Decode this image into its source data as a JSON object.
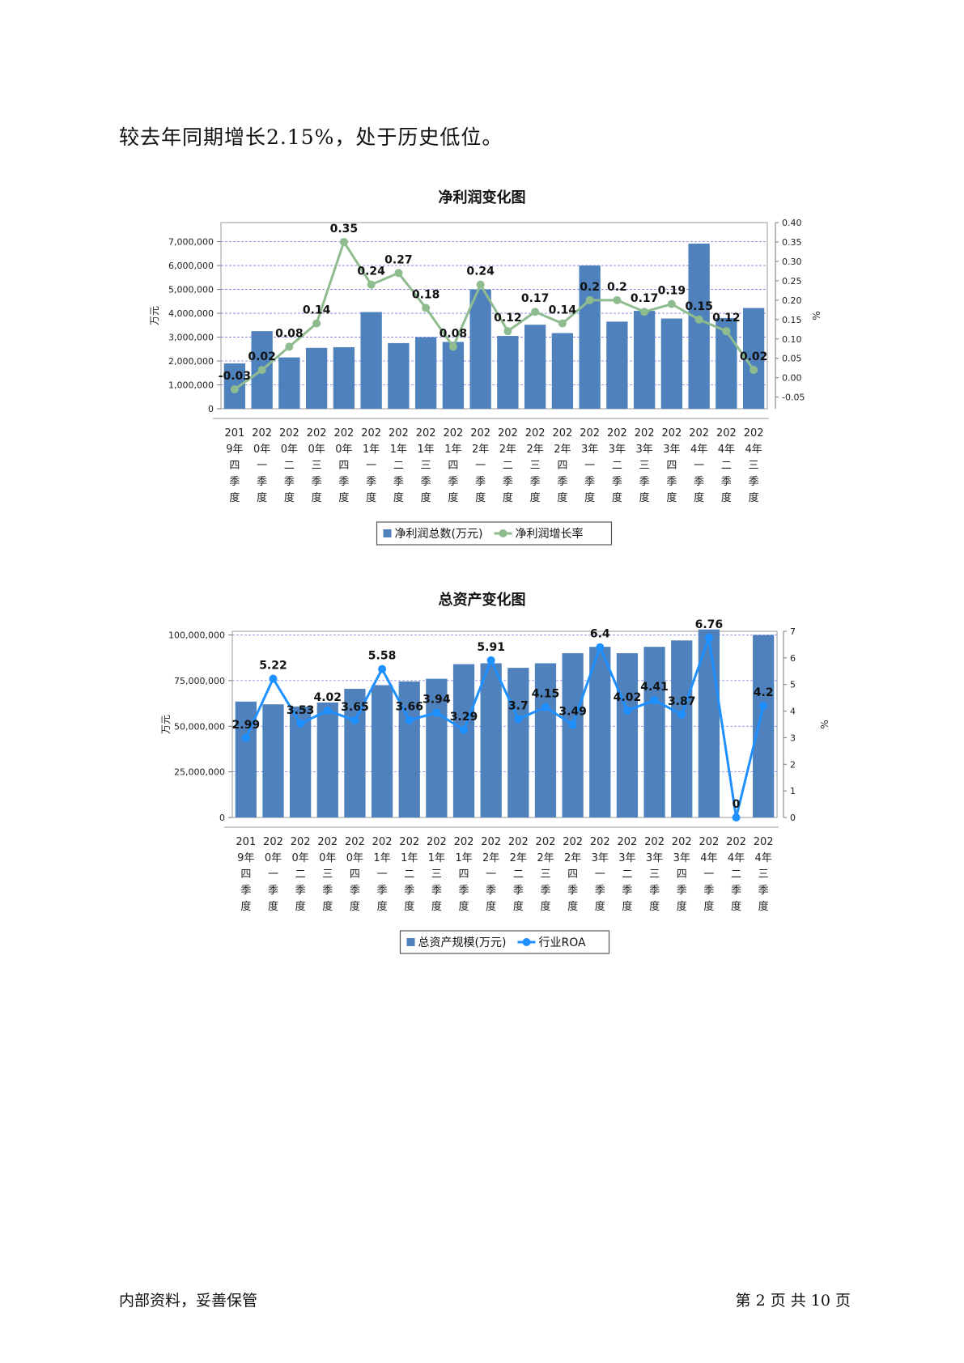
{
  "intro_text": "较去年同期增长2.15%，处于历史低位。",
  "footer": {
    "left": "内部资料，妥善保管",
    "right": "第 2 页  共 10 页"
  },
  "colors": {
    "bar": "#4f81bd",
    "line1": "#8fbc8f",
    "line2": "#1e90ff",
    "grid": "#7b7bdc"
  },
  "chart_data": [
    {
      "type": "bar",
      "title": "净利润变化图",
      "ylabel": "万元",
      "y2label": "%",
      "ylim": [
        0,
        7800000
      ],
      "y2lim": [
        -0.08,
        0.4
      ],
      "yticks": [
        "0",
        "1,000,000",
        "2,000,000",
        "3,000,000",
        "4,000,000",
        "5,000,000",
        "6,000,000",
        "7,000,000"
      ],
      "y2ticks": [
        "-0.05",
        "0.00",
        "0.05",
        "0.10",
        "0.15",
        "0.20",
        "0.25",
        "0.30",
        "0.35",
        "0.40"
      ],
      "categories": [
        "2019年四季度",
        "2020年一季度",
        "2020年二季度",
        "2020年三季度",
        "2020年四季度",
        "2021年一季度",
        "2021年二季度",
        "2021年三季度",
        "2021年四季度",
        "2022年一季度",
        "2022年二季度",
        "2022年三季度",
        "2022年四季度",
        "2023年一季度",
        "2023年二季度",
        "2023年三季度",
        "2023年四季度",
        "2024年一季度",
        "2024年二季度",
        "2024年三季度"
      ],
      "series": [
        {
          "name": "净利润总数(万元)",
          "kind": "bar",
          "axis": "left",
          "values": [
            1900000,
            3250000,
            2150000,
            2550000,
            2580000,
            4050000,
            2750000,
            3000000,
            2800000,
            5000000,
            3050000,
            3520000,
            3170000,
            6000000,
            3650000,
            4100000,
            3780000,
            6920000,
            3800000,
            4220000
          ]
        },
        {
          "name": "净利润增长率",
          "kind": "line",
          "axis": "right",
          "values": [
            -0.03,
            0.02,
            0.08,
            0.14,
            0.35,
            0.24,
            0.27,
            0.18,
            0.08,
            0.24,
            0.12,
            0.17,
            0.14,
            0.2,
            0.2,
            0.17,
            0.19,
            0.15,
            0.12,
            0.02
          ],
          "labels": [
            "-0.03",
            "0.02",
            "0.08",
            "0.14",
            "0.35",
            "0.24",
            "0.27",
            "0.18",
            "0.08",
            "0.24",
            "0.12",
            "0.17",
            "0.14",
            "0.2",
            "0.2",
            "0.17",
            "0.19",
            "0.15",
            "0.12",
            "0.02"
          ]
        }
      ],
      "grid": true,
      "legend": "bottom"
    },
    {
      "type": "bar",
      "title": "总资产变化图",
      "ylabel": "万元",
      "y2label": "%",
      "ylim": [
        0,
        102000000
      ],
      "y2lim": [
        0,
        7
      ],
      "yticks": [
        "0",
        "25,000,000",
        "50,000,000",
        "75,000,000",
        "100,000,000"
      ],
      "y2ticks": [
        "0",
        "1",
        "2",
        "3",
        "4",
        "5",
        "6",
        "7"
      ],
      "categories": [
        "2019年四季度",
        "2020年一季度",
        "2020年二季度",
        "2020年三季度",
        "2020年四季度",
        "2021年一季度",
        "2021年二季度",
        "2021年三季度",
        "2021年四季度",
        "2022年一季度",
        "2022年二季度",
        "2022年三季度",
        "2022年四季度",
        "2023年一季度",
        "2023年二季度",
        "2023年三季度",
        "2023年四季度",
        "2024年一季度",
        "2024年二季度",
        "2024年三季度"
      ],
      "series": [
        {
          "name": "总资产规模(万元)",
          "kind": "bar",
          "axis": "left",
          "values": [
            63500000,
            62000000,
            60800000,
            63000000,
            70500000,
            72500000,
            74500000,
            76000000,
            84000000,
            84500000,
            82000000,
            84500000,
            90000000,
            93500000,
            90000000,
            93500000,
            97000000,
            103000000,
            0,
            100000000
          ]
        },
        {
          "name": "行业ROA",
          "kind": "line",
          "axis": "right",
          "values": [
            2.99,
            5.22,
            3.53,
            4.02,
            3.65,
            5.58,
            3.66,
            3.94,
            3.29,
            5.91,
            3.7,
            4.15,
            3.49,
            6.4,
            4.02,
            4.41,
            3.87,
            6.76,
            0,
            4.2
          ],
          "labels": [
            "2.99",
            "5.22",
            "3.53",
            "4.02",
            "3.65",
            "5.58",
            "3.66",
            "3.94",
            "3.29",
            "5.91",
            "3.7",
            "4.15",
            "3.49",
            "6.4",
            "4.02",
            "4.41",
            "3.87",
            "6.76",
            "0",
            "4.2"
          ]
        }
      ],
      "grid": true,
      "legend": "bottom"
    }
  ]
}
